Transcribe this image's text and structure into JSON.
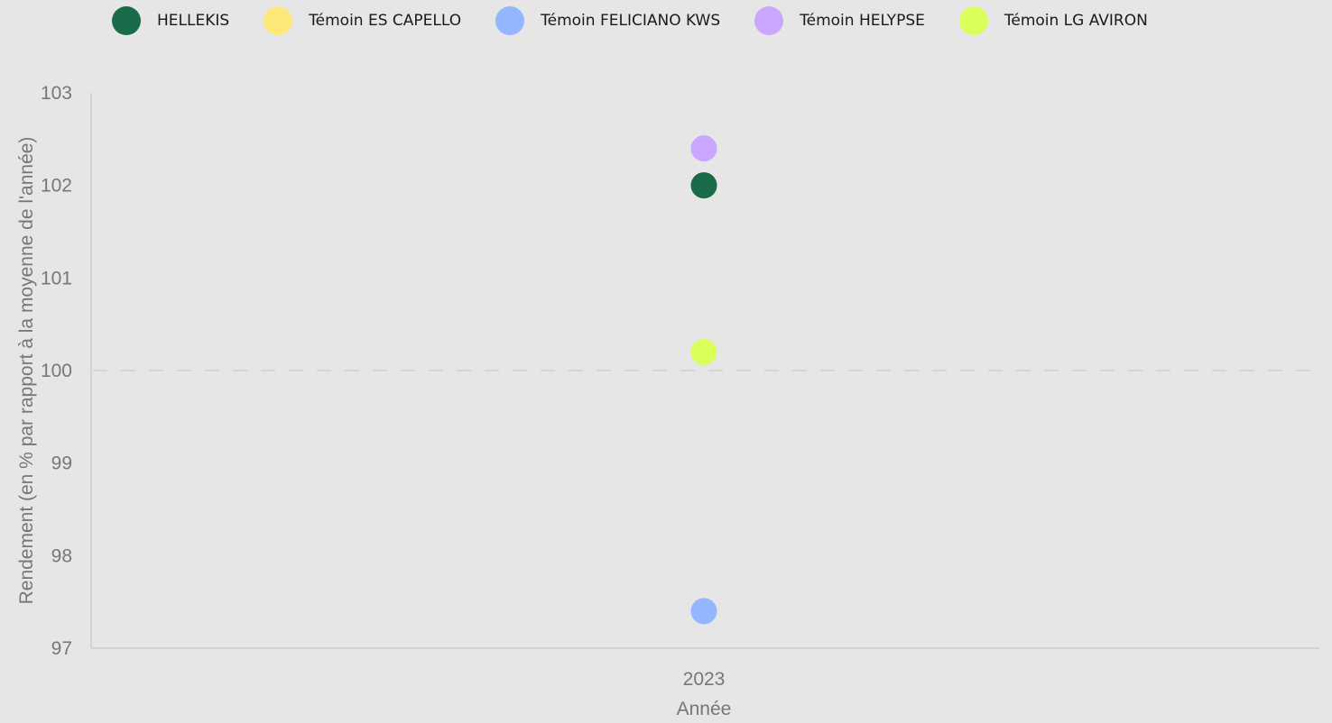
{
  "chart_data": {
    "type": "scatter",
    "title": "",
    "xlabel": "Année",
    "ylabel": "Rendement (en % par rapport à la moyenne de l'année)",
    "ylim": [
      97,
      103
    ],
    "yticks": [
      "97",
      "98",
      "99",
      "100",
      "101",
      "102",
      "103"
    ],
    "categories": [
      "2023"
    ],
    "reference_line": 100,
    "legend_position": "top",
    "grid": false,
    "series": [
      {
        "name": "HELLEKIS",
        "color": "#1a6b4a",
        "values": [
          102.0
        ]
      },
      {
        "name": "Témoin ES CAPELLO",
        "color": "#ffe87a",
        "values": [
          null
        ]
      },
      {
        "name": "Témoin FELICIANO KWS",
        "color": "#94b6ff",
        "values": [
          97.4
        ]
      },
      {
        "name": "Témoin HELYPSE",
        "color": "#c9a6ff",
        "values": [
          102.4
        ]
      },
      {
        "name": "Témoin LG AVIRON",
        "color": "#d8ff5a",
        "values": [
          100.2
        ]
      }
    ]
  }
}
